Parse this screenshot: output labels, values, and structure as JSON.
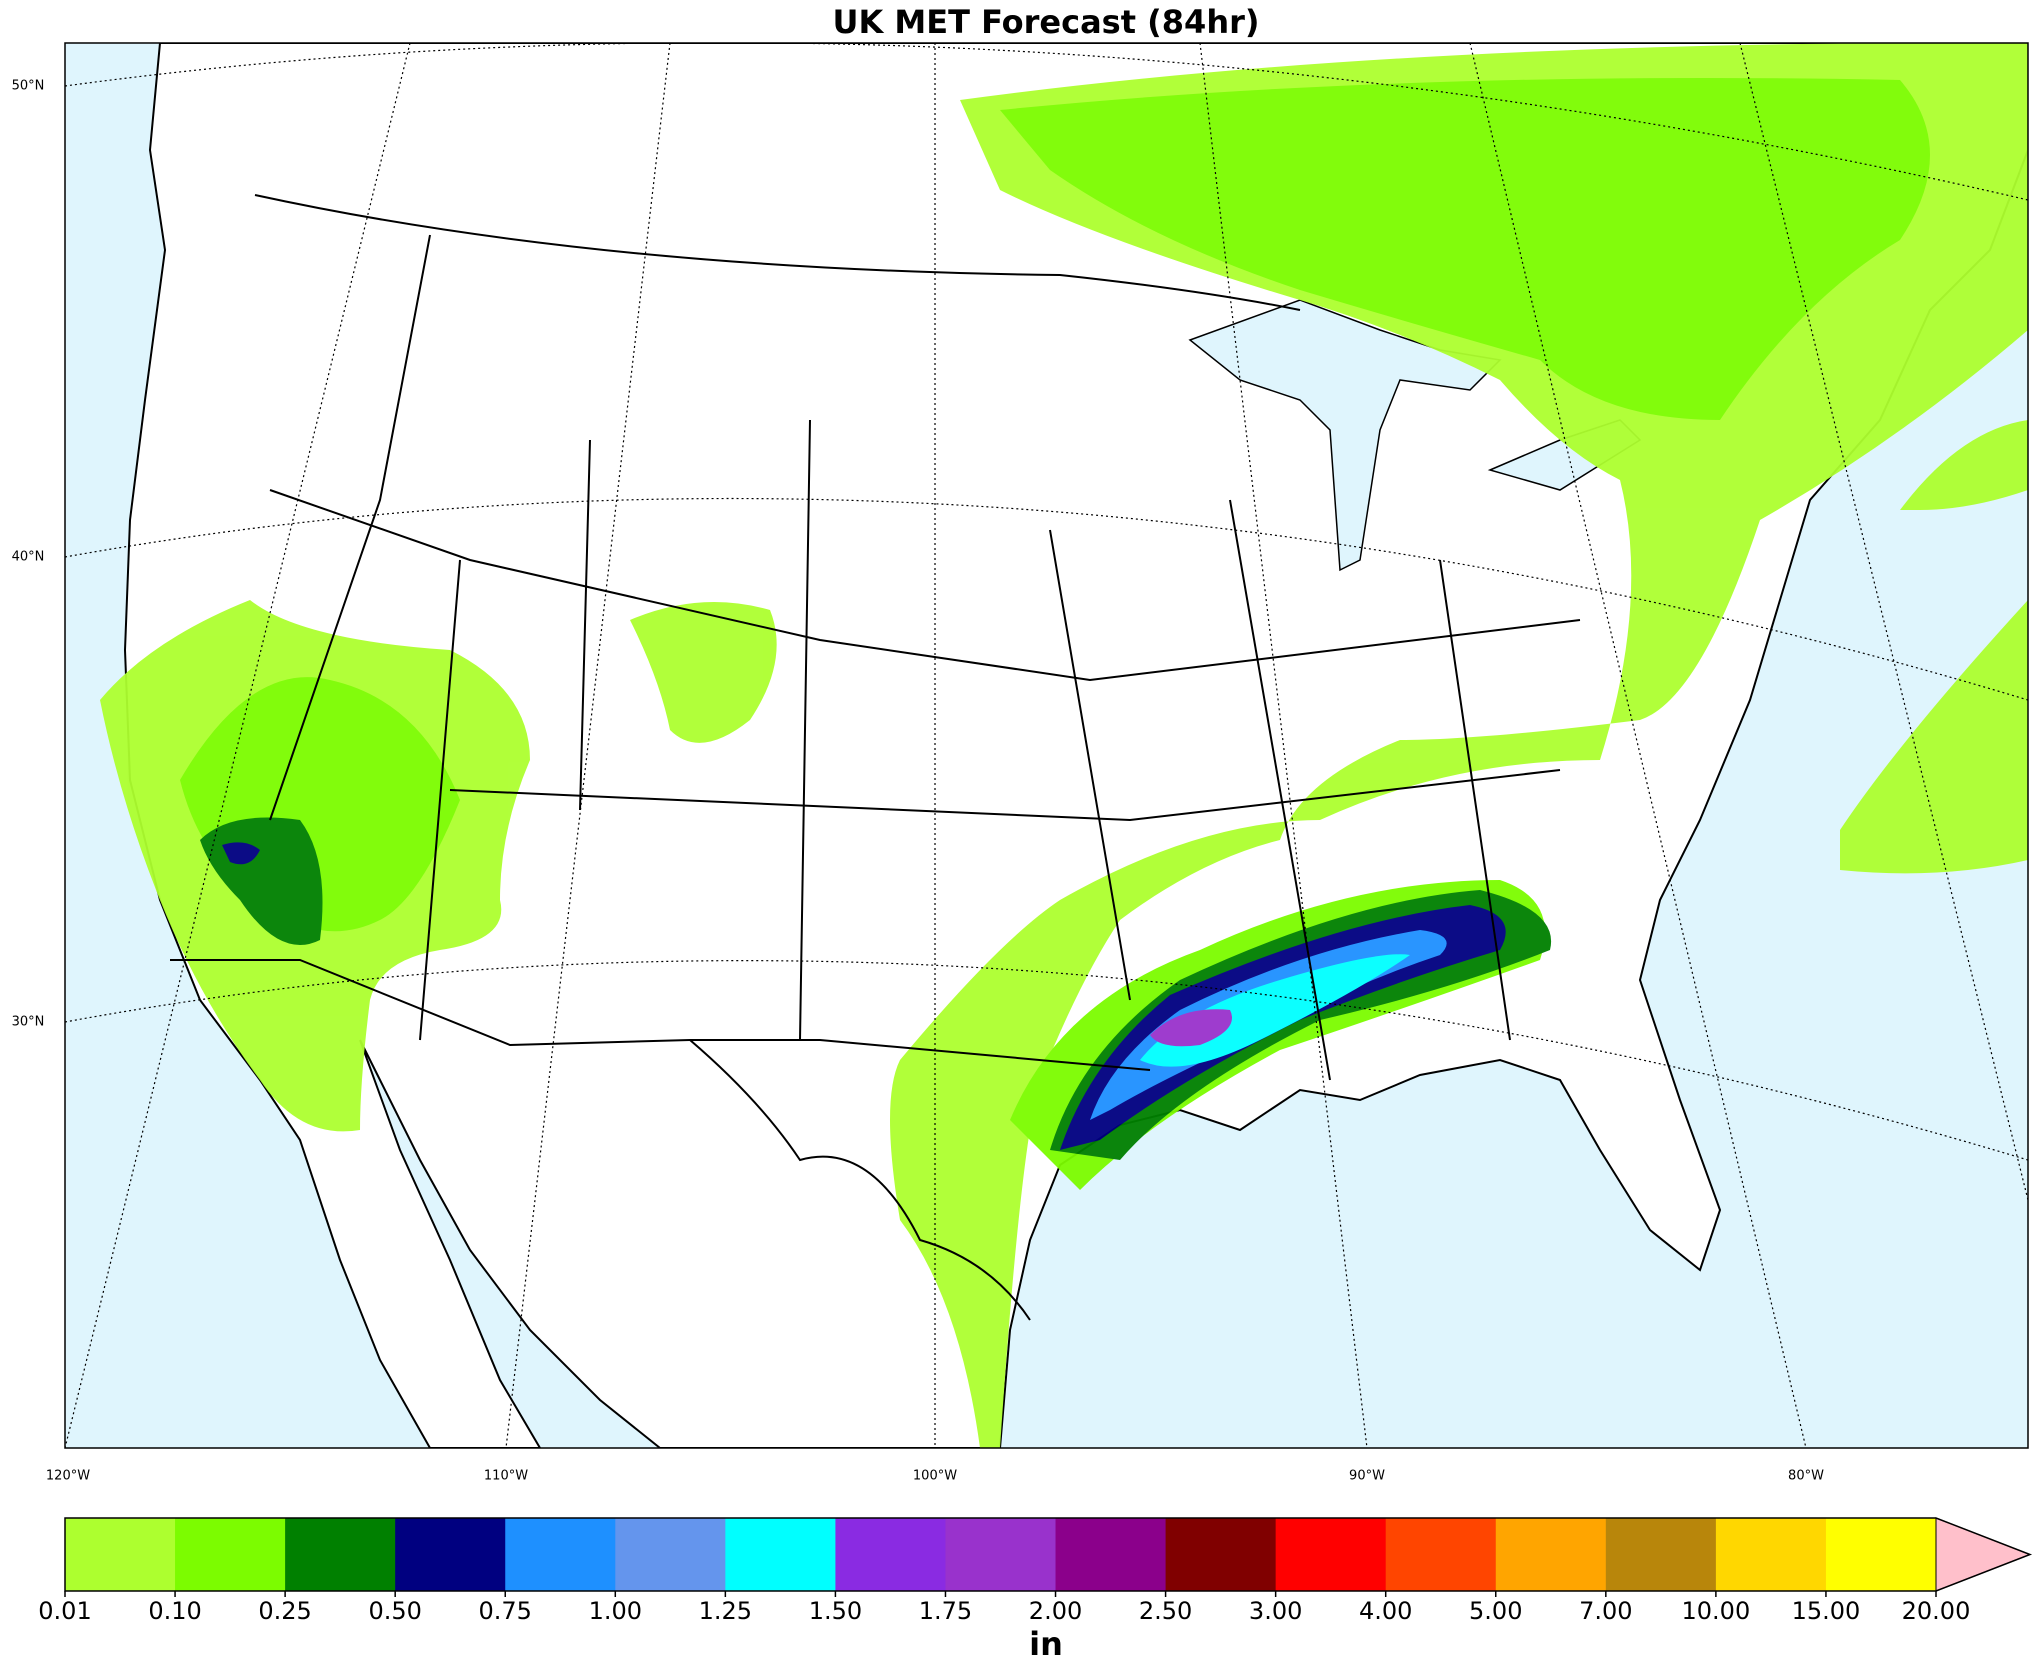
{
  "header": {
    "title": "UK MET Forecast (84hr)"
  },
  "map": {
    "lat_labels": [
      "50°N",
      "40°N",
      "30°N"
    ],
    "lon_labels": [
      "120°W",
      "110°W",
      "100°W",
      "90°W",
      "80°W"
    ]
  },
  "colorbar": {
    "ticks": [
      "0.01",
      "0.10",
      "0.25",
      "0.50",
      "0.75",
      "1.00",
      "1.25",
      "1.50",
      "1.75",
      "2.00",
      "2.50",
      "3.00",
      "4.00",
      "5.00",
      "7.00",
      "10.00",
      "15.00",
      "20.00"
    ],
    "colors": [
      "#adff2f",
      "#7cfc00",
      "#008000",
      "#000080",
      "#1e90ff",
      "#6495ed",
      "#00ffff",
      "#8a2be2",
      "#9932cc",
      "#8b008b",
      "#800000",
      "#ff0000",
      "#ff4500",
      "#ffa500",
      "#b8860b",
      "#ffd700",
      "#ffff00"
    ],
    "extend_color": "#ffc0cb",
    "unit": "in"
  }
}
